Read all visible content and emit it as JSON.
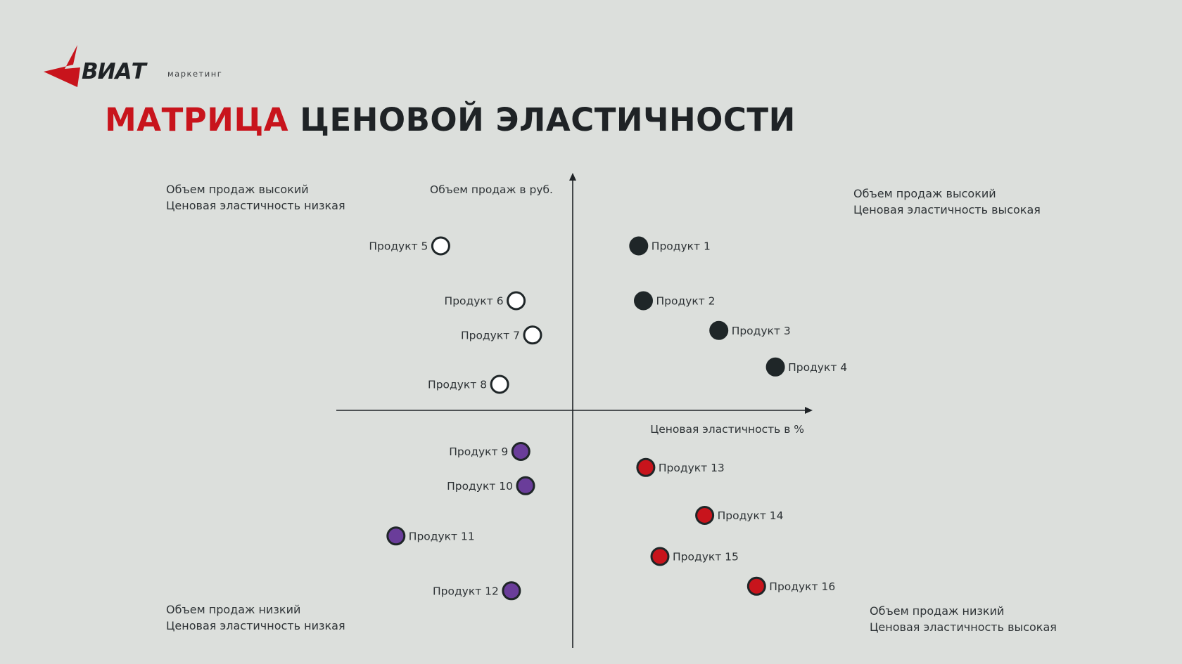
{
  "logo": {
    "main": "ВИАТ",
    "sub": "маркетинг",
    "accent_color": "#c8141c"
  },
  "title": {
    "accent": "МАТРИЦА",
    "rest": "ЦЕНОВОЙ ЭЛАСТИЧНОСТИ"
  },
  "quadrants": {
    "top_left": {
      "line1": "Объем продаж высокий",
      "line2": "Ценовая эластичность низкая"
    },
    "top_right": {
      "line1": "Объем продаж высокий",
      "line2": "Ценовая эластичность высокая"
    },
    "bottom_left": {
      "line1": "Объем продаж низкий",
      "line2": "Ценовая эластичность низкая"
    },
    "bottom_right": {
      "line1": "Объем продаж низкий",
      "line2": "Ценовая эластичность высокая"
    }
  },
  "axes": {
    "y_label": "Объем продаж в руб.",
    "x_label": "Ценовая эластичность в %"
  },
  "colors": {
    "dark": "#1f2628",
    "white": "#ffffff",
    "purple": "#6a3d9a",
    "red": "#c8141c",
    "axis": "#1f2326"
  },
  "products": [
    {
      "name": "Продукт 1",
      "group": "dark",
      "elasticity": 1.4,
      "volume": 3.6
    },
    {
      "name": "Продукт 2",
      "group": "dark",
      "elasticity": 1.5,
      "volume": 2.4
    },
    {
      "name": "Продукт 3",
      "group": "dark",
      "elasticity": 3.1,
      "volume": 1.75
    },
    {
      "name": "Продукт 4",
      "group": "dark",
      "elasticity": 4.3,
      "volume": 0.95
    },
    {
      "name": "Продукт 5",
      "group": "white",
      "elasticity": -2.8,
      "volume": 3.6
    },
    {
      "name": "Продукт 6",
      "group": "white",
      "elasticity": -1.2,
      "volume": 2.4
    },
    {
      "name": "Продукт 7",
      "group": "white",
      "elasticity": -0.85,
      "volume": 1.65
    },
    {
      "name": "Продукт 8",
      "group": "white",
      "elasticity": -1.55,
      "volume": 0.57
    },
    {
      "name": "Продукт 9",
      "group": "purple",
      "elasticity": -1.1,
      "volume": -0.9
    },
    {
      "name": "Продукт 10",
      "group": "purple",
      "elasticity": -1.0,
      "volume": -1.65
    },
    {
      "name": "Продукт 11",
      "group": "purple",
      "elasticity": -3.75,
      "volume": -2.75
    },
    {
      "name": "Продукт 12",
      "group": "purple",
      "elasticity": -1.3,
      "volume": -3.95
    },
    {
      "name": "Продукт 13",
      "group": "red",
      "elasticity": 1.55,
      "volume": -1.25
    },
    {
      "name": "Продукт 14",
      "group": "red",
      "elasticity": 2.8,
      "volume": -2.3
    },
    {
      "name": "Продукт 15",
      "group": "red",
      "elasticity": 1.85,
      "volume": -3.2
    },
    {
      "name": "Продукт 16",
      "group": "red",
      "elasticity": 3.9,
      "volume": -3.85
    }
  ]
}
